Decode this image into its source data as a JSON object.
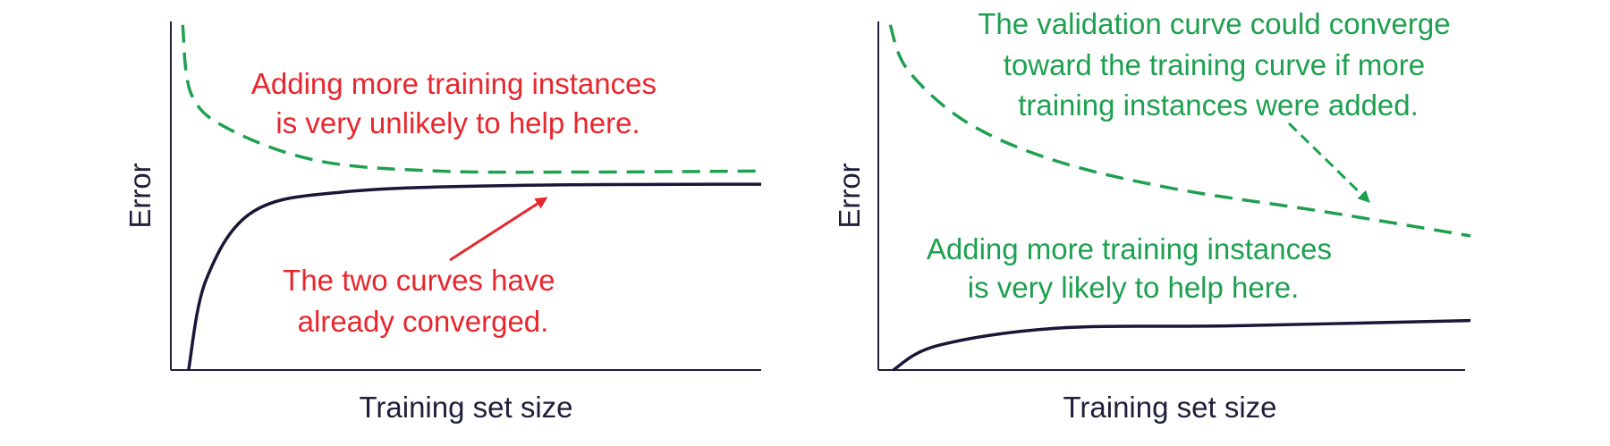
{
  "colors": {
    "training_curve": "#1a1638",
    "validation_curve": "#1ea050",
    "axis": "#1f1f3a",
    "annotation_red": "#e8262d",
    "annotation_green": "#1ea050"
  },
  "chart_data": [
    {
      "type": "line",
      "title": "",
      "xlabel": "Training set size",
      "ylabel": "Error",
      "xticks": [],
      "yticks": [],
      "grid": false,
      "legend": "none",
      "series": [
        {
          "role": "validation",
          "style": "dashed",
          "color": "#1ea050",
          "points": [
            [
              0.02,
              0.99
            ],
            [
              0.035,
              0.79
            ],
            [
              0.1,
              0.69
            ],
            [
              0.25,
              0.6
            ],
            [
              0.45,
              0.571
            ],
            [
              0.7,
              0.568
            ],
            [
              1.0,
              0.571
            ]
          ]
        },
        {
          "role": "training",
          "style": "solid",
          "color": "#1a1638",
          "points": [
            [
              0.03,
              0.0
            ],
            [
              0.06,
              0.26
            ],
            [
              0.14,
              0.455
            ],
            [
              0.3,
              0.512
            ],
            [
              0.6,
              0.53
            ],
            [
              1.0,
              0.533
            ]
          ]
        }
      ],
      "annotations": [
        {
          "color": "red",
          "lines": [
            "Adding more training instances",
            "is very unlikely to help here."
          ]
        },
        {
          "color": "red",
          "lines": [
            "The two curves have",
            "already converged."
          ],
          "arrow": true
        }
      ]
    },
    {
      "type": "line",
      "title": "",
      "xlabel": "Training set size",
      "ylabel": "Error",
      "xticks": [],
      "yticks": [],
      "grid": false,
      "legend": "none",
      "series": [
        {
          "role": "validation",
          "style": "dashed",
          "color": "#1ea050",
          "points": [
            [
              0.02,
              0.99
            ],
            [
              0.05,
              0.86
            ],
            [
              0.15,
              0.71
            ],
            [
              0.3,
              0.6
            ],
            [
              0.5,
              0.52
            ],
            [
              0.75,
              0.455
            ],
            [
              1.0,
              0.385
            ]
          ]
        },
        {
          "role": "training",
          "style": "solid",
          "color": "#1a1638",
          "points": [
            [
              0.025,
              0.0
            ],
            [
              0.1,
              0.07
            ],
            [
              0.3,
              0.12
            ],
            [
              0.6,
              0.127
            ],
            [
              1.0,
              0.142
            ]
          ]
        }
      ],
      "annotations": [
        {
          "color": "green",
          "lines": [
            "The validation curve could converge",
            "toward the training curve if more",
            "training instances were added."
          ],
          "arrow": true,
          "arrow_style": "dashed"
        },
        {
          "color": "green",
          "lines": [
            "Adding more training instances",
            "is very likely to help here."
          ]
        }
      ]
    }
  ]
}
